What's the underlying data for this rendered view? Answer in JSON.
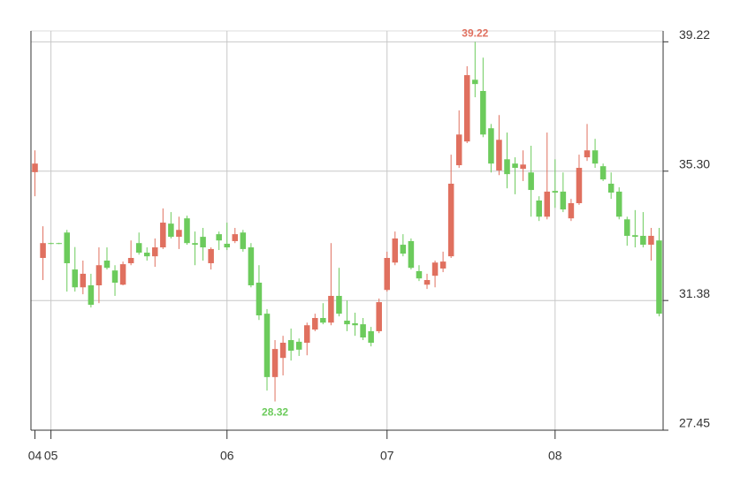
{
  "chart_data": {
    "type": "candlestick",
    "categories": [
      "04",
      null,
      "05",
      null,
      null,
      null,
      null,
      null,
      null,
      null,
      null,
      null,
      null,
      null,
      null,
      null,
      null,
      null,
      null,
      null,
      null,
      null,
      null,
      null,
      "06",
      null,
      null,
      null,
      null,
      null,
      null,
      null,
      null,
      null,
      null,
      null,
      null,
      null,
      null,
      null,
      null,
      null,
      null,
      null,
      "07",
      null,
      null,
      null,
      null,
      null,
      null,
      null,
      null,
      null,
      null,
      null,
      null,
      null,
      null,
      null,
      null,
      null,
      null,
      null,
      null,
      "08",
      null,
      null,
      null,
      null,
      null,
      null,
      null,
      null,
      null,
      null,
      null,
      null,
      null
    ],
    "open": [
      35.27,
      32.67,
      33.12,
      33.12,
      33.44,
      32.32,
      31.78,
      31.84,
      31.84,
      32.59,
      32.29,
      31.86,
      32.51,
      33.12,
      32.83,
      32.72,
      32.99,
      33.71,
      33.31,
      33.87,
      33.12,
      33.31,
      32.51,
      33.39,
      33.1,
      33.18,
      33.44,
      32.99,
      31.92,
      30.98,
      29.06,
      29.64,
      30.18,
      30.13,
      30.1,
      30.5,
      30.85,
      30.71,
      31.52,
      30.77,
      30.69,
      30.66,
      30.45,
      30.45,
      31.7,
      32.53,
      33.07,
      33.18,
      32.27,
      31.86,
      32.13,
      32.35,
      32.72,
      35.48,
      36.2,
      38.07,
      37.73,
      36.6,
      35.32,
      35.66,
      35.53,
      35.37,
      35.26,
      34.41,
      33.92,
      34.7,
      34.68,
      33.87,
      34.33,
      35.72,
      35.93,
      35.45,
      34.92,
      34.68,
      33.84,
      33.36,
      33.34,
      33.07,
      33.2
    ],
    "close": [
      35.53,
      33.12,
      33.1,
      33.1,
      32.51,
      31.78,
      32.19,
      31.25,
      32.45,
      32.37,
      31.92,
      32.48,
      32.67,
      32.83,
      32.72,
      32.99,
      33.74,
      33.31,
      33.52,
      33.12,
      33.07,
      32.99,
      32.94,
      33.2,
      32.99,
      33.39,
      32.94,
      31.84,
      30.93,
      29.06,
      29.91,
      30.1,
      29.86,
      29.89,
      30.63,
      30.85,
      30.71,
      31.52,
      30.98,
      30.66,
      30.63,
      30.26,
      30.1,
      31.33,
      32.67,
      33.26,
      32.8,
      32.37,
      32.05,
      32.0,
      32.53,
      32.56,
      34.92,
      36.41,
      38.21,
      37.94,
      36.41,
      35.53,
      36.25,
      35.21,
      35.4,
      35.5,
      34.73,
      33.92,
      34.68,
      34.65,
      34.14,
      34.33,
      35.4,
      35.93,
      35.53,
      35.05,
      34.65,
      33.92,
      33.34,
      33.31,
      33.07,
      33.34,
      30.98
    ],
    "high": [
      35.93,
      33.63,
      33.13,
      33.13,
      33.52,
      33.0,
      32.59,
      32.19,
      32.99,
      32.99,
      32.45,
      32.56,
      33.2,
      33.44,
      32.99,
      33.26,
      34.17,
      34.06,
      33.92,
      33.95,
      33.47,
      33.58,
      32.99,
      33.47,
      33.74,
      33.58,
      33.52,
      33.12,
      32.45,
      31.12,
      30.18,
      30.31,
      30.53,
      30.23,
      30.71,
      30.98,
      31.3,
      33.12,
      32.37,
      31.38,
      31.01,
      30.85,
      30.58,
      31.44,
      32.86,
      33.47,
      33.39,
      33.26,
      32.45,
      32.19,
      32.59,
      32.86,
      35.8,
      37.14,
      38.48,
      39.22,
      38.74,
      36.73,
      37.0,
      36.47,
      35.72,
      35.93,
      36.07,
      34.54,
      36.47,
      35.66,
      35.26,
      34.46,
      35.8,
      36.73,
      36.28,
      35.53,
      35.26,
      34.81,
      33.92,
      34.12,
      34.06,
      33.58,
      33.58
    ],
    "low": [
      34.54,
      32.0,
      33.09,
      33.09,
      31.65,
      31.65,
      31.57,
      31.17,
      31.3,
      32.32,
      31.52,
      31.84,
      32.45,
      32.77,
      32.59,
      32.4,
      32.94,
      33.26,
      32.94,
      33.07,
      32.45,
      32.59,
      32.32,
      32.91,
      32.91,
      33.12,
      32.86,
      31.78,
      30.79,
      28.65,
      28.32,
      29.11,
      29.56,
      29.7,
      29.72,
      30.45,
      30.66,
      30.63,
      30.9,
      30.45,
      30.31,
      30.18,
      29.99,
      30.39,
      31.65,
      32.45,
      32.72,
      32.32,
      31.97,
      31.73,
      31.78,
      32.24,
      32.67,
      35.4,
      36.15,
      37.54,
      36.33,
      35.26,
      35.18,
      34.78,
      34.6,
      35.0,
      33.92,
      33.79,
      33.84,
      34.19,
      34.06,
      33.79,
      34.28,
      35.61,
      35.4,
      35.0,
      34.46,
      33.84,
      33.04,
      32.99,
      32.99,
      32.59,
      30.9
    ],
    "up_color": "#e0705f",
    "down_color": "#6ccb5c",
    "ylim": [
      27.45,
      39.55
    ],
    "yticks": [
      27.45,
      31.38,
      {
        "value": 35.3,
        "label": "35.30"
      },
      39.22
    ],
    "grid": true,
    "annotations": [
      {
        "text": "39.22",
        "value": 39.22,
        "color": "#e0705f"
      },
      {
        "text": "28.32",
        "value": 28.32,
        "color": "#6ccb5c"
      }
    ]
  }
}
